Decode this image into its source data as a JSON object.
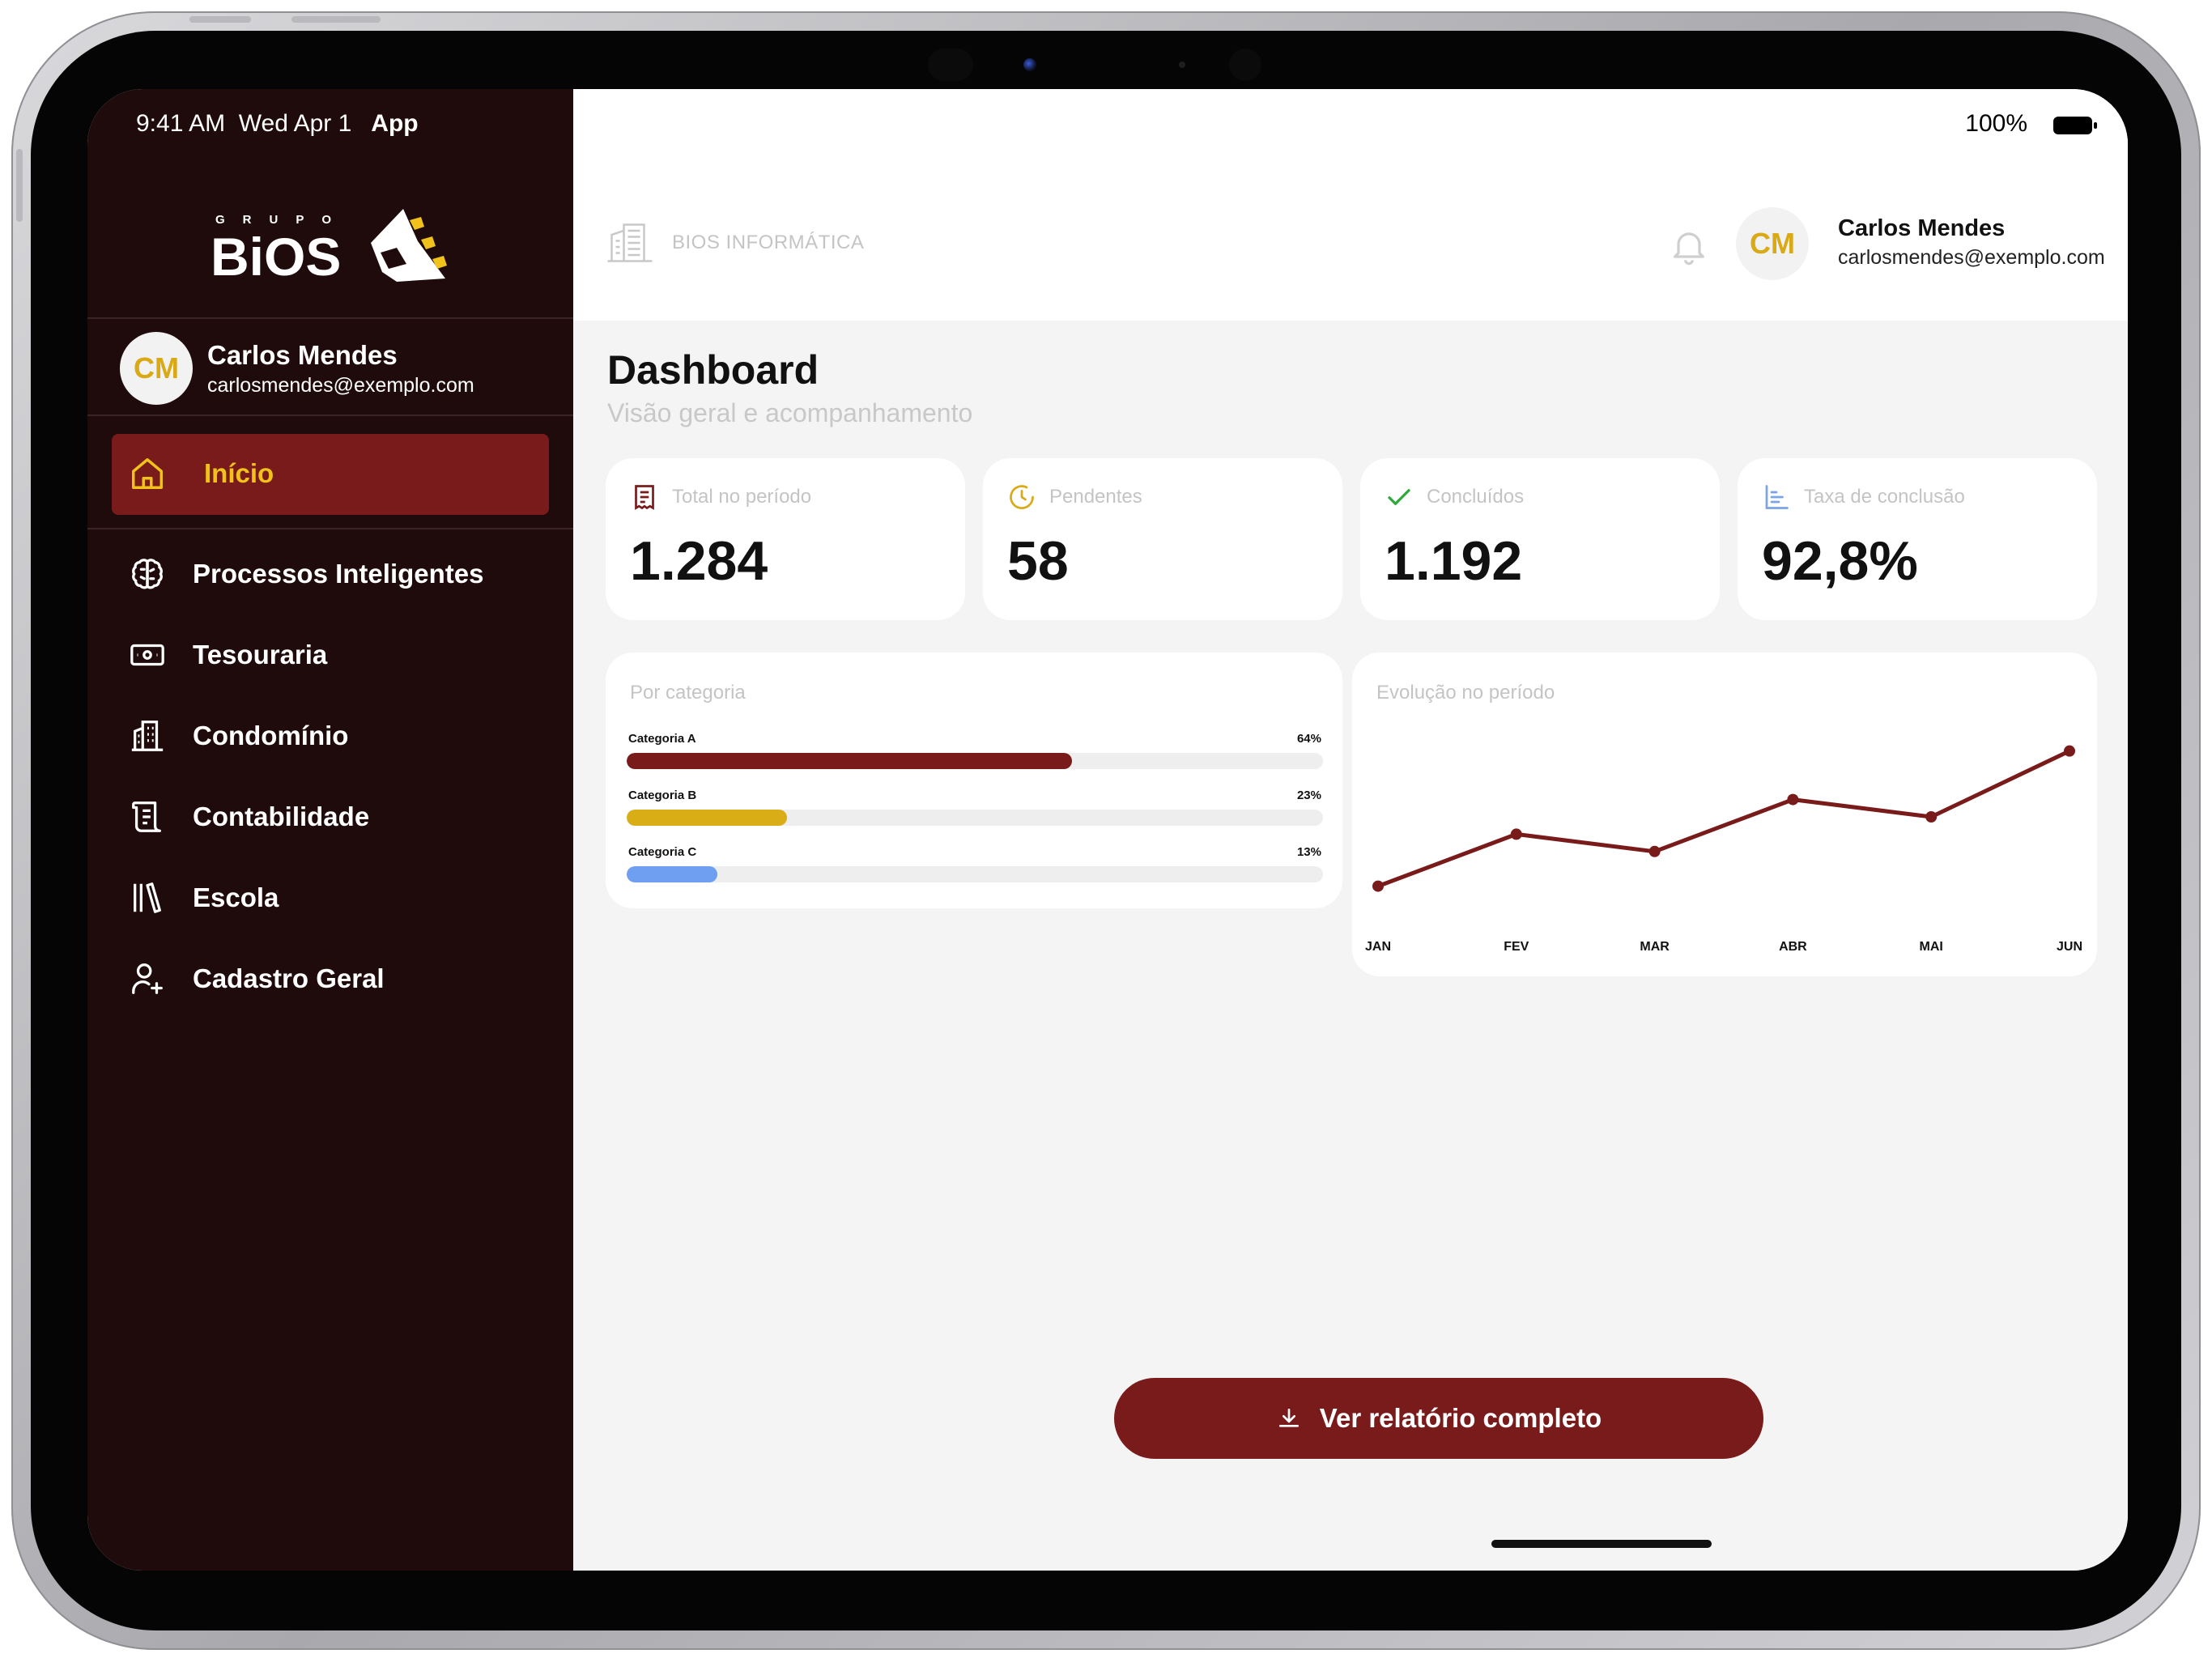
{
  "status_bar": {
    "time": "9:41 AM",
    "date": "Wed Apr 1",
    "app": "App",
    "battery": "100%"
  },
  "brand": {
    "logo_small_text": "GRUPO",
    "logo_text": "BiOS",
    "accent": "#f0c21b",
    "primary": "#7a1b1b",
    "sidebar_bg": "#1f0b0b"
  },
  "user": {
    "initials": "CM",
    "name": "Carlos Mendes",
    "email": "carlosmendes@exemplo.com"
  },
  "sidebar": {
    "items": [
      {
        "label": "Início",
        "icon": "home-icon",
        "active": true
      },
      {
        "label": "Processos Inteligentes",
        "icon": "brain-icon",
        "active": false
      },
      {
        "label": "Tesouraria",
        "icon": "money-icon",
        "active": false
      },
      {
        "label": "Condomínio",
        "icon": "building-icon",
        "active": false
      },
      {
        "label": "Contabilidade",
        "icon": "ledger-icon",
        "active": false
      },
      {
        "label": "Escola",
        "icon": "books-icon",
        "active": false
      },
      {
        "label": "Cadastro Geral",
        "icon": "user-add-icon",
        "active": false
      }
    ]
  },
  "header": {
    "company": "BIOS INFORMÁTICA",
    "bell_icon": "bell-icon"
  },
  "page": {
    "title": "Dashboard",
    "subtitle": "Visão geral e acompanhamento"
  },
  "stats": [
    {
      "label": "Total no período",
      "value": "1.284",
      "icon": "receipt-icon",
      "color": "#7a1b1b"
    },
    {
      "label": "Pendentes",
      "value": "58",
      "icon": "clock-icon",
      "color": "#d9a916"
    },
    {
      "label": "Concluídos",
      "value": "1.192",
      "icon": "check-icon",
      "color": "#2eaa3c"
    },
    {
      "label": "Taxa de conclusão",
      "value": "92,8%",
      "icon": "chart-icon",
      "color": "#7aa3e8"
    }
  ],
  "category_card": {
    "title": "Por categoria",
    "items": [
      {
        "name": "Categoria A",
        "pct_label": "64%",
        "value": 64,
        "color": "#7a1b1b"
      },
      {
        "name": "Categoria B",
        "pct_label": "23%",
        "value": 23,
        "color": "#d9ad16"
      },
      {
        "name": "Categoria C",
        "pct_label": "13%",
        "value": 13,
        "color": "#6e9ff0"
      }
    ]
  },
  "chart_data": {
    "type": "line",
    "title": "Evolução no período",
    "categories": [
      "JAN",
      "FEV",
      "MAR",
      "ABR",
      "MAI",
      "JUN"
    ],
    "series": [
      {
        "values": [
          10,
          40,
          30,
          60,
          50,
          88
        ],
        "color": "#7a1b1b"
      }
    ],
    "ylim": [
      0,
      100
    ],
    "grid": false,
    "legend": "none"
  },
  "cta": {
    "label": "Ver relatório completo",
    "icon": "download-icon"
  }
}
